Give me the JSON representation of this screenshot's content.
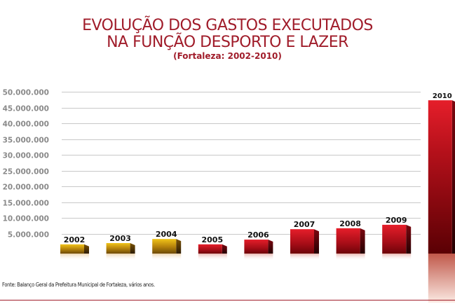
{
  "title_line1": "EVOLUÇÃO DOS GASTOS EXECUTADOS",
  "title_line2": "NA FUNÇÃO DESPORTO E LAZER",
  "subtitle": "(Fortaleza: 2002-2010)",
  "source": "Fonte: Balanço Geral da Prefeitura Municipal de Fortaleza, vários anos.",
  "colors": {
    "title": "#a01c2a",
    "gold": "#c99a10",
    "red": "#c0121e",
    "grid": "#c8c8c8",
    "tick_text": "#8a8a8a"
  },
  "chart_data": {
    "type": "bar",
    "title": "EVOLUÇÃO DOS GASTOS EXECUTADOS NA FUNÇÃO DESPORTO E LAZER",
    "subtitle": "(Fortaleza: 2002-2010)",
    "xlabel": "",
    "ylabel": "",
    "categories": [
      "2002",
      "2003",
      "2004",
      "2005",
      "2006",
      "2007",
      "2008",
      "2009",
      "2010"
    ],
    "values": [
      1600000,
      2000000,
      3300000,
      1600000,
      3100000,
      6400000,
      6700000,
      7800000,
      47300000
    ],
    "bar_colors": [
      "gold",
      "gold",
      "gold",
      "red",
      "red",
      "red",
      "red",
      "red",
      "red"
    ],
    "ylim": [
      0,
      50000000
    ],
    "yticks": [
      5000000,
      10000000,
      15000000,
      20000000,
      25000000,
      30000000,
      35000000,
      40000000,
      45000000,
      50000000
    ],
    "ytick_labels": [
      "5.000.000",
      "10.000.000",
      "15.000.000",
      "20.000.000",
      "25.000.000",
      "30.000.000",
      "35.000.000",
      "40.000.000",
      "45.000.000",
      "50.000.000"
    ],
    "grid": true,
    "legend": "none",
    "data_labels": [
      "2002",
      "2003",
      "2004",
      "2005",
      "2006",
      "2007",
      "2008",
      "2009",
      "2010"
    ]
  }
}
